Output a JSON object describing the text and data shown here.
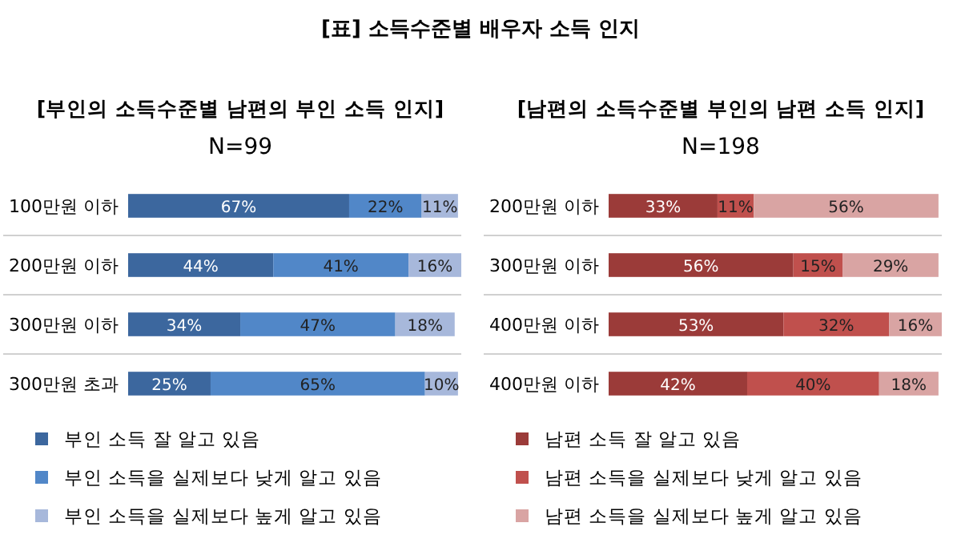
{
  "chart_data": [
    {
      "type": "bar",
      "orientation": "horizontal",
      "stacked": true,
      "title": "[부인의 소득수준별 남편의 부인 소득 인지]",
      "subtitle": "N=99",
      "annotations": [
        "[표] 소득수준별 배우자 소득 인지"
      ],
      "legend": "bottom",
      "categories": [
        "100만원 이하",
        "200만원 이하",
        "300만원 이하",
        "300만원 초과"
      ],
      "series": [
        {
          "name": "부인 소득 잘 알고 있음",
          "color": "#3c679e",
          "values": [
            67,
            44,
            34,
            25
          ],
          "value_labels": [
            "67%",
            "44%",
            "34%",
            "25%"
          ]
        },
        {
          "name": "부인 소득을 실제보다 낮게 알고 있음",
          "color": "#5187c8",
          "values": [
            22,
            41,
            47,
            65
          ],
          "value_labels": [
            "22%",
            "41%",
            "47%",
            "65%"
          ]
        },
        {
          "name": "부인 소득을 실제보다 높게 알고 있음",
          "color": "#a7b8db",
          "values": [
            11,
            16,
            18,
            10
          ],
          "value_labels": [
            "11%",
            "16%",
            "18%",
            "10%"
          ]
        }
      ]
    },
    {
      "type": "bar",
      "orientation": "horizontal",
      "stacked": true,
      "title": "[남편의 소득수준별 부인의 남편 소득 인지]",
      "subtitle": "N=198",
      "legend": "bottom",
      "categories": [
        "200만원 이하",
        "300만원 이하",
        "400만원 이하",
        "400만원 이하"
      ],
      "series": [
        {
          "name": "남편 소득 잘 알고 있음",
          "color": "#9b3b39",
          "values": [
            33,
            56,
            53,
            42
          ],
          "value_labels": [
            "33%",
            "56%",
            "53%",
            "42%"
          ]
        },
        {
          "name": "남편 소득을 실제보다 낮게 알고 있음",
          "color": "#c0504d",
          "values": [
            11,
            15,
            32,
            40
          ],
          "value_labels": [
            "11%",
            "15%",
            "32%",
            "40%"
          ]
        },
        {
          "name": "남편 소득을 실제보다 높게 알고 있음",
          "color": "#d9a4a3",
          "values": [
            56,
            29,
            16,
            18
          ],
          "value_labels": [
            "56%",
            "29%",
            "16%",
            "18%"
          ]
        }
      ]
    }
  ]
}
